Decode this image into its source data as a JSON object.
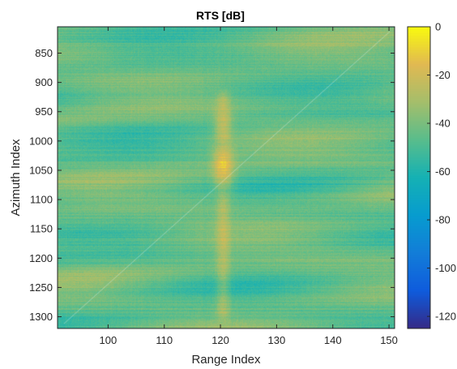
{
  "chart_data": {
    "type": "heatmap",
    "title": "RTS [dB]",
    "xlabel": "Range Index",
    "ylabel": "Azimuth Index",
    "xlim": [
      91,
      151
    ],
    "ylim": [
      805,
      1320
    ],
    "y_reversed": true,
    "x_ticks": [
      100,
      110,
      120,
      130,
      140,
      150
    ],
    "y_ticks": [
      850,
      900,
      950,
      1000,
      1050,
      1100,
      1150,
      1200,
      1250,
      1300
    ],
    "colorbar": {
      "range": [
        -125,
        0
      ],
      "ticks": [
        0,
        -20,
        -40,
        -60,
        -80,
        -100,
        -120
      ],
      "colormap": "parula"
    },
    "background_level_db": -45,
    "features": [
      {
        "x": 120.5,
        "y_from": 930,
        "y_to": 1290,
        "level_db": -30,
        "width": 1.2
      },
      {
        "x": 120.5,
        "y": 975,
        "level_db": -22,
        "width": 1.5,
        "height": 40
      },
      {
        "x": 120.5,
        "y": 1045,
        "level_db": -15,
        "width": 1.8,
        "height": 45
      }
    ]
  }
}
